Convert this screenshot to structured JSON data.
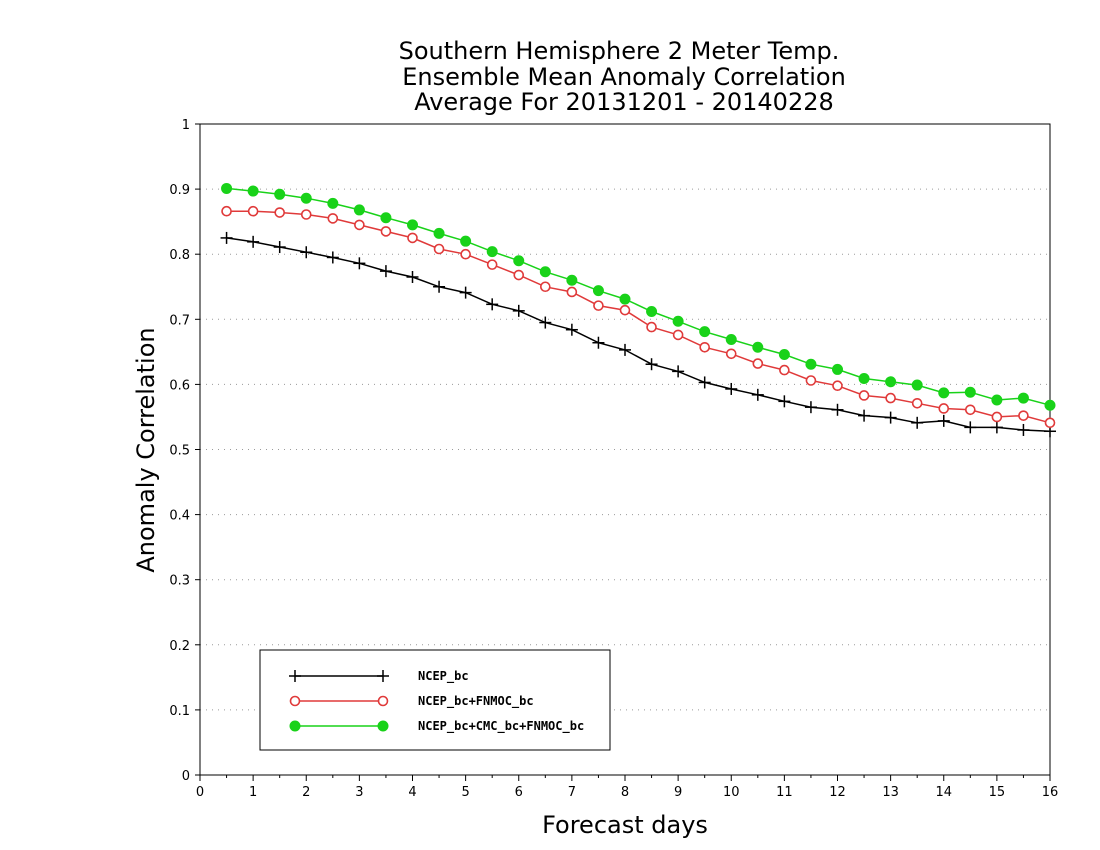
{
  "chart_data": {
    "type": "line",
    "title_lines": [
      "Southern Hemisphere 2 Meter Temp.",
      "Ensemble Mean Anomaly Correlation",
      "Average For 20131201 - 20140228"
    ],
    "xlabel": "Forecast days",
    "ylabel": "Anomaly Correlation",
    "xlim": [
      0,
      16
    ],
    "ylim": [
      0,
      1
    ],
    "x_ticks": [
      0,
      1,
      2,
      3,
      4,
      5,
      6,
      7,
      8,
      9,
      10,
      11,
      12,
      13,
      14,
      15,
      16
    ],
    "y_ticks": [
      0,
      0.1,
      0.2,
      0.3,
      0.4,
      0.5,
      0.6,
      0.7,
      0.8,
      0.9,
      1
    ],
    "y_tick_labels": [
      "0",
      "0.1",
      "0.2",
      "0.3",
      "0.4",
      "0.5",
      "0.6",
      "0.7",
      "0.8",
      "0.9",
      "1"
    ],
    "grid": "horizontal-dotted",
    "legend_position": "bottom-left",
    "x": [
      0.5,
      1,
      1.5,
      2,
      2.5,
      3,
      3.5,
      4,
      4.5,
      5,
      5.5,
      6,
      6.5,
      7,
      7.5,
      8,
      8.5,
      9,
      9.5,
      10,
      10.5,
      11,
      11.5,
      12,
      12.5,
      13,
      13.5,
      14,
      14.5,
      15,
      15.5,
      16
    ],
    "series": [
      {
        "name": "NCEP_bc",
        "color": "#000000",
        "marker": "plus",
        "values": [
          0.825,
          0.819,
          0.811,
          0.803,
          0.795,
          0.786,
          0.774,
          0.765,
          0.75,
          0.741,
          0.723,
          0.713,
          0.695,
          0.684,
          0.664,
          0.653,
          0.631,
          0.62,
          0.603,
          0.593,
          0.584,
          0.574,
          0.565,
          0.561,
          0.552,
          0.549,
          0.541,
          0.544,
          0.534,
          0.534,
          0.53,
          0.528
        ]
      },
      {
        "name": "NCEP_bc+FNMOC_bc",
        "color": "#e03a3a",
        "marker": "open-circle",
        "values": [
          0.866,
          0.866,
          0.864,
          0.861,
          0.855,
          0.845,
          0.835,
          0.825,
          0.808,
          0.8,
          0.784,
          0.768,
          0.75,
          0.742,
          0.721,
          0.714,
          0.688,
          0.676,
          0.657,
          0.647,
          0.632,
          0.622,
          0.606,
          0.598,
          0.583,
          0.579,
          0.571,
          0.563,
          0.561,
          0.55,
          0.552,
          0.541
        ]
      },
      {
        "name": "NCEP_bc+CMC_bc+FNMOC_bc",
        "color": "#19d219",
        "marker": "filled-circle",
        "values": [
          0.901,
          0.897,
          0.892,
          0.886,
          0.878,
          0.868,
          0.856,
          0.845,
          0.832,
          0.82,
          0.804,
          0.79,
          0.773,
          0.76,
          0.744,
          0.731,
          0.712,
          0.697,
          0.681,
          0.669,
          0.657,
          0.646,
          0.631,
          0.623,
          0.609,
          0.604,
          0.599,
          0.587,
          0.588,
          0.576,
          0.579,
          0.568
        ]
      }
    ]
  }
}
